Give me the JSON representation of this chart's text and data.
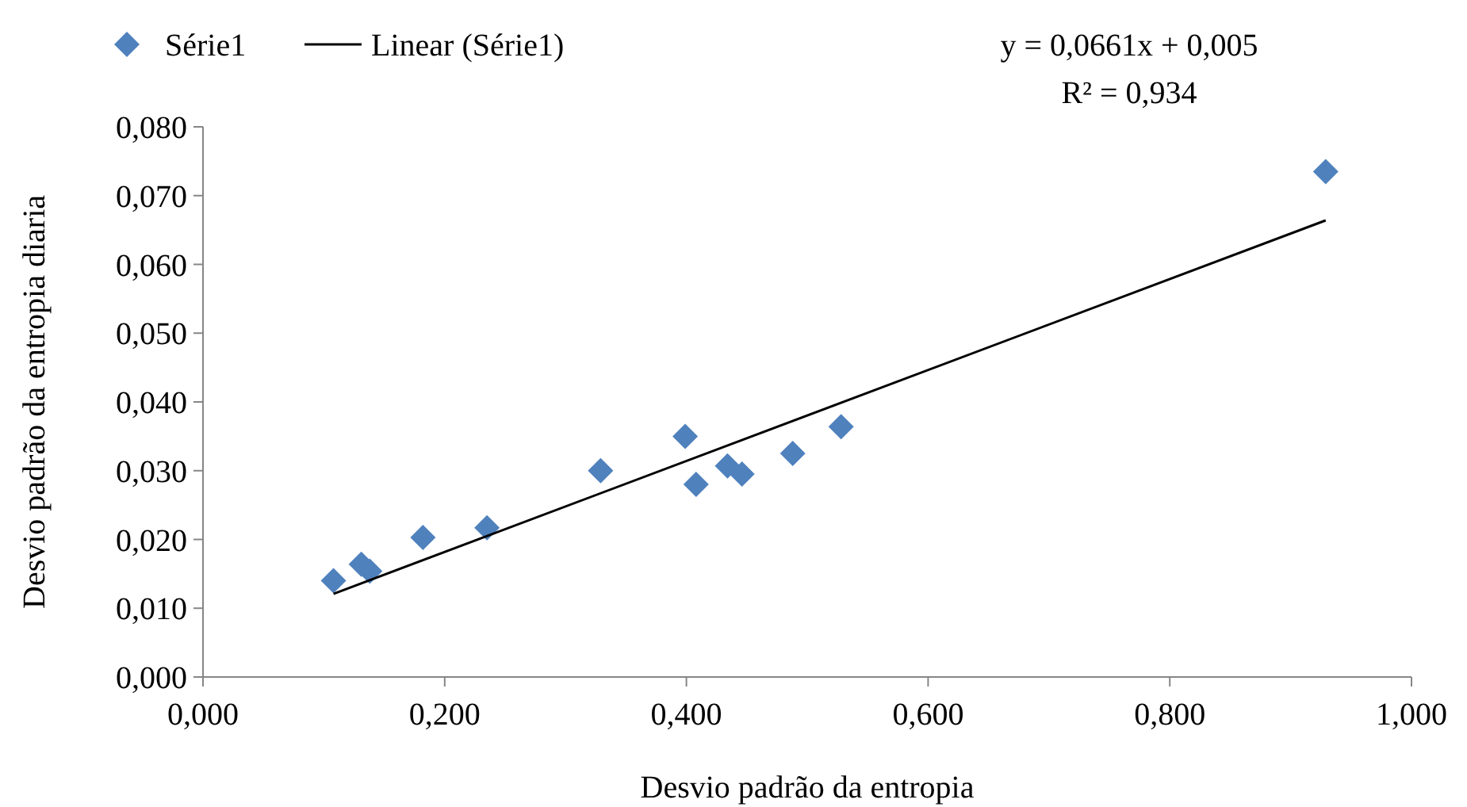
{
  "chart_data": {
    "type": "scatter",
    "xlabel": "Desvio padrão da entropia",
    "ylabel": "Desvio padrão da entropia diaria",
    "xlim": [
      0,
      1
    ],
    "ylim": [
      0,
      0.08
    ],
    "xticks": [
      {
        "value": 0,
        "label": "0,000"
      },
      {
        "value": 0.2,
        "label": "0,200"
      },
      {
        "value": 0.4,
        "label": "0,400"
      },
      {
        "value": 0.6,
        "label": "0,600"
      },
      {
        "value": 0.8,
        "label": "0,800"
      },
      {
        "value": 1,
        "label": "1,000"
      }
    ],
    "yticks": [
      {
        "value": 0,
        "label": "0,000"
      },
      {
        "value": 0.01,
        "label": "0,010"
      },
      {
        "value": 0.02,
        "label": "0,020"
      },
      {
        "value": 0.03,
        "label": "0,030"
      },
      {
        "value": 0.04,
        "label": "0,040"
      },
      {
        "value": 0.05,
        "label": "0,050"
      },
      {
        "value": 0.06,
        "label": "0,060"
      },
      {
        "value": 0.07,
        "label": "0,070"
      },
      {
        "value": 0.08,
        "label": "0,080"
      }
    ],
    "grid": false,
    "legend": "top left",
    "marker": "diamond",
    "annotations": [
      "y = 0,0661x + 0,005",
      "R² = 0,934"
    ],
    "series": [
      {
        "name": "Série1",
        "color": "#4f81bd",
        "x": [
          0.108,
          0.131,
          0.138,
          0.182,
          0.235,
          0.329,
          0.399,
          0.408,
          0.434,
          0.446,
          0.488,
          0.528,
          0.929
        ],
        "values": [
          0.014,
          0.0164,
          0.0154,
          0.0203,
          0.0217,
          0.03,
          0.035,
          0.028,
          0.0307,
          0.0295,
          0.0325,
          0.0364,
          0.0735
        ]
      },
      {
        "name": "Linear (Série1)",
        "type": "line",
        "marker": "none",
        "line_style": "solid",
        "color": "#000000",
        "x": [
          0.108,
          0.929
        ],
        "values": [
          0.0121,
          0.0664
        ]
      }
    ]
  }
}
